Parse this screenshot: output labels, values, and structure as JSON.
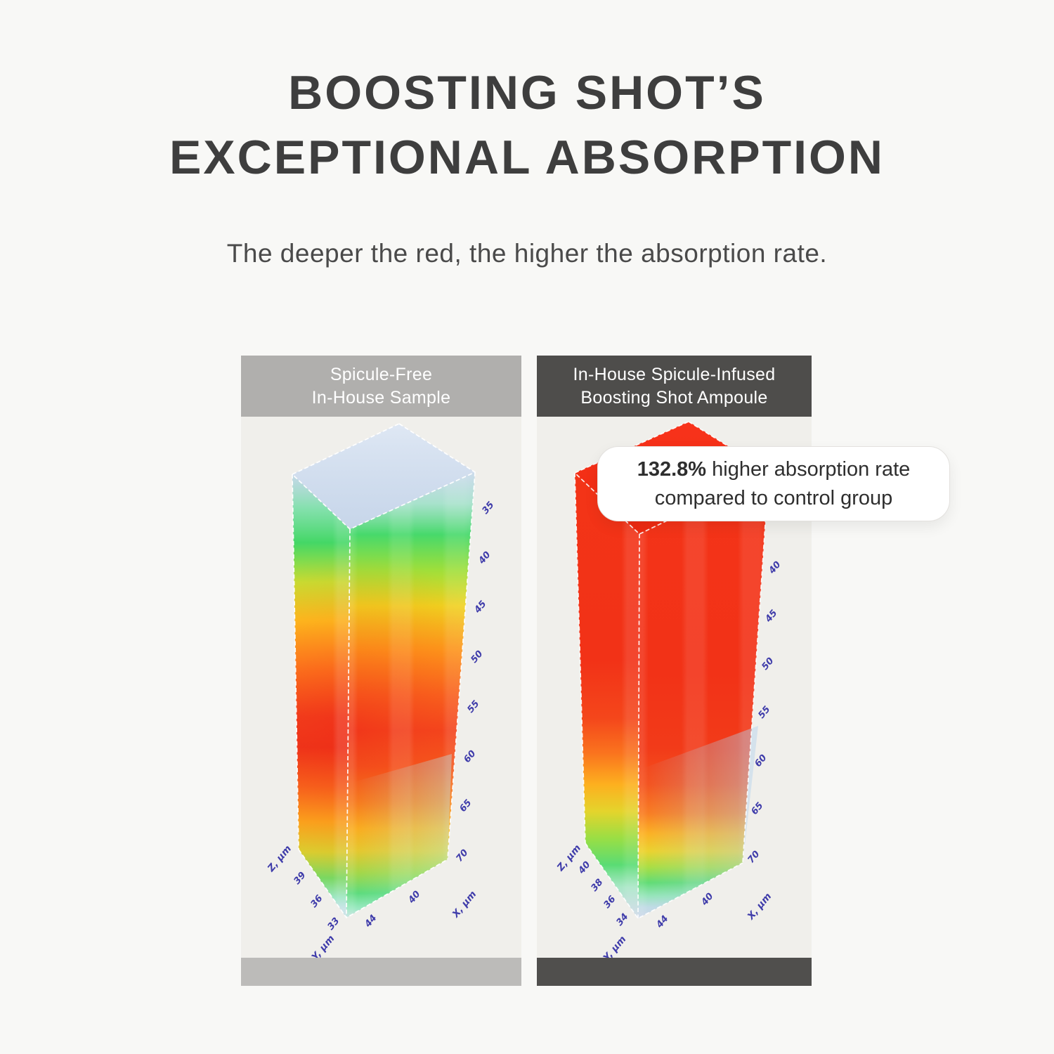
{
  "title": {
    "line1": "BOOSTING SHOT’S",
    "line2": "EXCEPTIONAL ABSORPTION"
  },
  "subtitle": "The deeper the red, the higher the absorption rate.",
  "callout": {
    "highlight": "132.8%",
    "line1_rest": " higher absorption rate",
    "line2": "compared to control group"
  },
  "colors": {
    "page_bg": "#f8f8f6",
    "plot_bg": "#f0efeb",
    "left_header_bg": "#b0afad",
    "right_header_bg": "#4e4d4b",
    "left_footer_bg": "#bcbbb9",
    "right_footer_bg": "#504f4d",
    "tick_text": "#3f3caa",
    "title_text": "#3e3e3e",
    "high_absorption_red": "#f43418"
  },
  "panels": [
    {
      "id": "control",
      "header": {
        "line1": "Spicule-Free",
        "line2": "In-House Sample"
      },
      "axes": {
        "x_right_ticks": [
          "35",
          "40",
          "45",
          "50",
          "55",
          "60",
          "65",
          "70"
        ],
        "x_label": "X, µm",
        "z_ticks": [
          "39",
          "36",
          "33"
        ],
        "z_label": "Z, µm",
        "y_ticks": [
          "44",
          "40"
        ],
        "y_label": "Y, µm"
      }
    },
    {
      "id": "boosting-shot",
      "header": {
        "line1": "In-House Spicule-Infused",
        "line2": "Boosting Shot Ampoule"
      },
      "axes": {
        "x_right_ticks": [
          "40",
          "45",
          "50",
          "55",
          "60",
          "65",
          "70"
        ],
        "x_label": "X, µm",
        "z_ticks": [
          "40",
          "38",
          "36",
          "34"
        ],
        "z_label": "Z, µm",
        "y_ticks": [
          "44",
          "40"
        ],
        "y_label": "Y, µm"
      }
    }
  ],
  "chart_data": [
    {
      "type": "heatmap",
      "title": "Spicule-Free In-House Sample",
      "description": "3D volume heatmap of absorption depth in control sample; deeper red = higher absorption rate",
      "x_axis": {
        "label": "X, µm",
        "ticks": [
          35,
          40,
          45,
          50,
          55,
          60,
          65,
          70
        ]
      },
      "y_axis": {
        "label": "Y, µm",
        "ticks": [
          44,
          40
        ]
      },
      "z_axis": {
        "label": "Z, µm",
        "ticks": [
          39,
          36,
          33
        ]
      },
      "legend_position": "none",
      "grid": false,
      "depth_color_profile": [
        {
          "depth_pct": 0,
          "color": "#bcd2ec",
          "absorption": "very low"
        },
        {
          "depth_pct": 13,
          "color": "#47d96b",
          "absorption": "moderate"
        },
        {
          "depth_pct": 30,
          "color": "#f0d51f",
          "absorption": "high"
        },
        {
          "depth_pct": 40,
          "color": "#ff9c1b",
          "absorption": "higher"
        },
        {
          "depth_pct": 58,
          "color": "#f4431f",
          "absorption": "highest"
        },
        {
          "depth_pct": 80,
          "color": "#fdc31e",
          "absorption": "high"
        },
        {
          "depth_pct": 90,
          "color": "#9be24a",
          "absorption": "moderate"
        },
        {
          "depth_pct": 100,
          "color": "#8fe7bb",
          "absorption": "low"
        }
      ]
    },
    {
      "type": "heatmap",
      "title": "In-House Spicule-Infused Boosting Shot Ampoule",
      "description": "3D volume heatmap of absorption depth in spicule-infused ampoule; almost entirely red (high absorption)",
      "annotation": "132.8% higher absorption rate compared to control group",
      "x_axis": {
        "label": "X, µm",
        "ticks": [
          40,
          45,
          50,
          55,
          60,
          65,
          70
        ]
      },
      "y_axis": {
        "label": "Y, µm",
        "ticks": [
          44,
          40
        ]
      },
      "z_axis": {
        "label": "Z, µm",
        "ticks": [
          40,
          38,
          36,
          34
        ]
      },
      "legend_position": "none",
      "grid": false,
      "depth_color_profile": [
        {
          "depth_pct": 0,
          "color": "#f43418",
          "absorption": "highest"
        },
        {
          "depth_pct": 62,
          "color": "#f23b19",
          "absorption": "highest"
        },
        {
          "depth_pct": 77,
          "color": "#fa7b1e",
          "absorption": "high"
        },
        {
          "depth_pct": 85,
          "color": "#ecd22a",
          "absorption": "moderate"
        },
        {
          "depth_pct": 92,
          "color": "#5fdc72",
          "absorption": "low"
        },
        {
          "depth_pct": 100,
          "color": "#bccbe8",
          "absorption": "very low"
        }
      ]
    }
  ]
}
